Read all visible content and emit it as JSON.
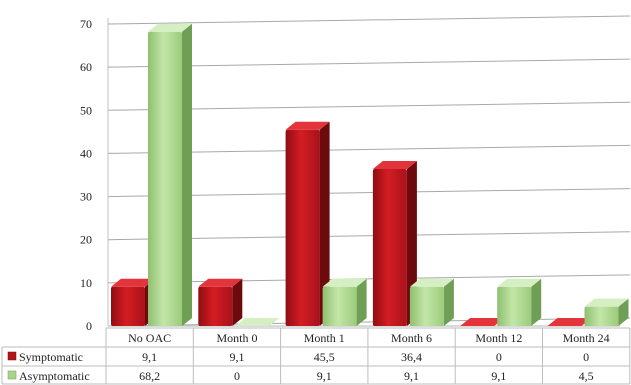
{
  "chart_data": {
    "type": "bar",
    "categories": [
      "No OAC",
      "Month 0",
      "Month 1",
      "Month 6",
      "Month 12",
      "Month 24"
    ],
    "series": [
      {
        "name": "Symptomatic",
        "values": [
          9.1,
          9.1,
          45.5,
          36.4,
          0,
          0
        ],
        "labels": [
          "9,1",
          "9,1",
          "45,5",
          "36,4",
          "0",
          "0"
        ],
        "color": "#c0151b"
      },
      {
        "name": "Asymptomatic",
        "values": [
          68.2,
          0,
          9.1,
          9.1,
          9.1,
          4.5
        ],
        "labels": [
          "68,2",
          "0",
          "9,1",
          "9,1",
          "9,1",
          "4,5"
        ],
        "color": "#a9d58b"
      }
    ],
    "yticks": [
      "0",
      "10",
      "20",
      "30",
      "40",
      "50",
      "60",
      "70"
    ],
    "ylim": [
      0,
      70
    ],
    "grid": true,
    "legend": "data-table"
  }
}
